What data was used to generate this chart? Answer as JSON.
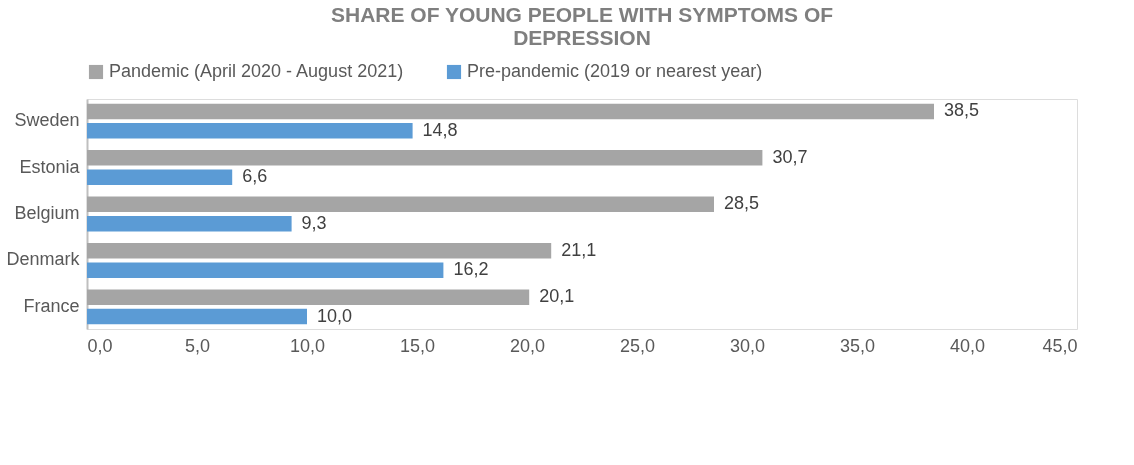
{
  "chart_data": {
    "type": "bar",
    "orientation": "horizontal",
    "title": "SHARE OF YOUNG PEOPLE WITH SYMPTOMS OF DEPRESSION",
    "categories": [
      "Sweden",
      "Estonia",
      "Belgium",
      "Denmark",
      "France"
    ],
    "series": [
      {
        "name": "Pandemic (April 2020 - August 2021)",
        "color": "#a5a5a5",
        "values": [
          38.5,
          30.7,
          28.5,
          21.1,
          20.1
        ],
        "value_labels": [
          "38,5",
          "30,7",
          "28,5",
          "21,1",
          "20,1"
        ]
      },
      {
        "name": "Pre-pandemic (2019 or nearest year)",
        "color": "#5b9bd5",
        "values": [
          14.8,
          6.6,
          9.3,
          16.2,
          10.0
        ],
        "value_labels": [
          "14,8",
          "6,6",
          "9,3",
          "16,2",
          "10,0"
        ]
      }
    ],
    "xlim": [
      0,
      45
    ],
    "xticks": [
      {
        "value": 0,
        "label": "0,0"
      },
      {
        "value": 5,
        "label": "5,0"
      },
      {
        "value": 10,
        "label": "10,0"
      },
      {
        "value": 15,
        "label": "15,0"
      },
      {
        "value": 20,
        "label": "20,0"
      },
      {
        "value": 25,
        "label": "25,0"
      },
      {
        "value": 30,
        "label": "30,0"
      },
      {
        "value": 35,
        "label": "35,0"
      },
      {
        "value": 40,
        "label": "40,0"
      },
      {
        "value": 45,
        "label": "45,0"
      }
    ],
    "legend": "top",
    "grid": false
  }
}
